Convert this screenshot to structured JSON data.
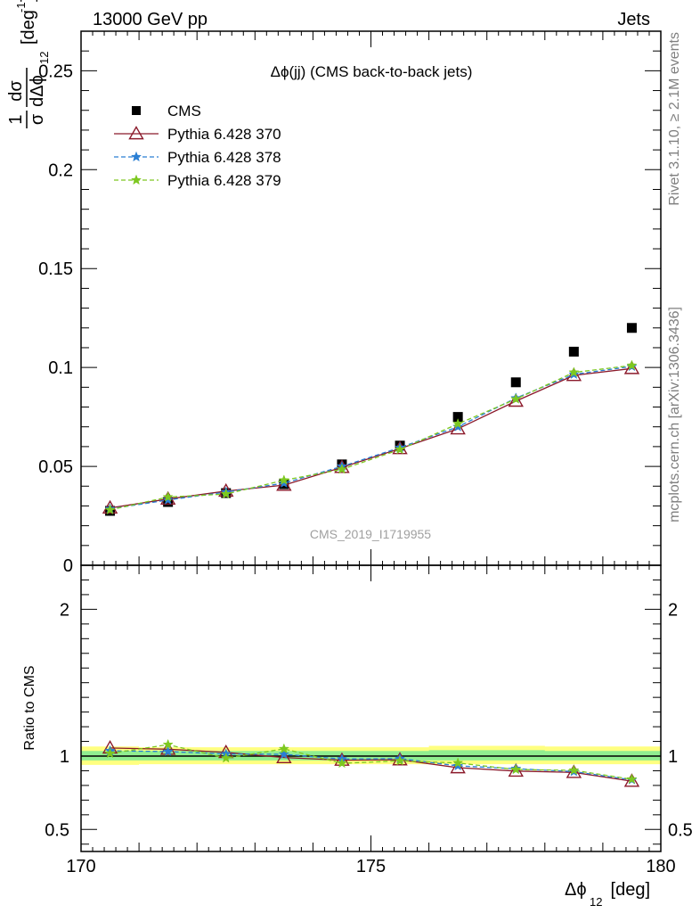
{
  "header": {
    "left": "13000 GeV pp",
    "right": "Jets"
  },
  "side_labels": {
    "rivet": "Rivet 3.1.10, ≥ 2.1M events",
    "mcplots": "mcplots.cern.ch [arXiv:1306.3436]"
  },
  "chart_data": [
    {
      "type": "scatter",
      "title": "Δϕ(jj) (CMS back-to-back jets)",
      "watermark": "CMS_2019_I1719955",
      "ylabel": "1/σ dσ/dΔϕ_12 [deg^-1]",
      "ylabel_parts": {
        "frac_num": "1",
        "frac_den": "σ",
        "d_num": "dσ",
        "d_den": "dΔϕ",
        "sub": "12",
        "unit": "[deg",
        "unit_exp": "-1",
        "unit_close": "]"
      },
      "xlim": [
        170,
        180
      ],
      "ylim": [
        0,
        0.27
      ],
      "yticks": [
        0,
        0.05,
        0.1,
        0.15,
        0.2,
        0.25
      ],
      "ytick_labels": [
        "0",
        "0.05",
        "0.1",
        "0.15",
        "0.2",
        "0.25"
      ],
      "x": [
        170.5,
        171.5,
        172.5,
        173.5,
        174.5,
        175.5,
        176.5,
        177.5,
        178.5,
        179.5
      ],
      "legend_position": "top-left",
      "series": [
        {
          "name": "CMS",
          "color": "#000000",
          "marker": "square",
          "line": "none",
          "values": [
            0.0275,
            0.032,
            0.0365,
            0.041,
            0.051,
            0.0605,
            0.075,
            0.0925,
            0.108,
            0.12
          ]
        },
        {
          "name": "Pythia 6.428 370",
          "color": "#8b1a2b",
          "marker": "triangle",
          "line": "solid",
          "values": [
            0.029,
            0.0335,
            0.0375,
            0.0405,
            0.0495,
            0.059,
            0.069,
            0.083,
            0.096,
            0.0995
          ]
        },
        {
          "name": "Pythia 6.428 378",
          "color": "#2a7fd4",
          "marker": "star",
          "line": "dashed",
          "values": [
            0.0285,
            0.033,
            0.037,
            0.0415,
            0.05,
            0.0595,
            0.07,
            0.0845,
            0.0965,
            0.1005
          ]
        },
        {
          "name": "Pythia 6.428 379",
          "color": "#7dc820",
          "marker": "star",
          "line": "dashed",
          "values": [
            0.028,
            0.0345,
            0.036,
            0.043,
            0.0485,
            0.0585,
            0.0715,
            0.084,
            0.0975,
            0.101
          ]
        }
      ]
    },
    {
      "type": "line",
      "ylabel": "Ratio to CMS",
      "xlabel": "Δϕ_12 [deg]",
      "xlabel_parts": {
        "main": "Δϕ",
        "sub": "12",
        "unit": " [deg]"
      },
      "xlim": [
        170,
        180
      ],
      "ylim": [
        0.35,
        2.3
      ],
      "xticks": [
        170,
        175,
        180
      ],
      "xtick_labels": [
        "170",
        "175",
        "180"
      ],
      "yticks": [
        0.5,
        1,
        2
      ],
      "ytick_labels": [
        "0.5",
        "1",
        "2"
      ],
      "reference": 1,
      "x": [
        170.5,
        171.5,
        172.5,
        173.5,
        174.5,
        175.5,
        176.5,
        177.5,
        178.5,
        179.5
      ],
      "uncertainty_bands": {
        "inner_color": "#90ee90",
        "outer_color": "#ffff80",
        "inner_low": [
          0.97,
          0.97,
          0.97,
          0.97,
          0.97,
          0.97,
          0.97,
          0.97,
          0.97,
          0.97
        ],
        "inner_high": [
          1.035,
          1.035,
          1.035,
          1.035,
          1.035,
          1.035,
          1.04,
          1.04,
          1.035,
          1.035
        ],
        "outer_low": [
          0.94,
          0.945,
          0.945,
          0.945,
          0.945,
          0.945,
          0.945,
          0.945,
          0.945,
          0.945
        ],
        "outer_high": [
          1.065,
          1.06,
          1.06,
          1.06,
          1.06,
          1.06,
          1.07,
          1.07,
          1.065,
          1.065
        ]
      },
      "series": [
        {
          "name": "Pythia 6.428 370",
          "color": "#8b1a2b",
          "marker": "triangle",
          "line": "solid",
          "values": [
            1.055,
            1.047,
            1.025,
            0.99,
            0.972,
            0.975,
            0.921,
            0.898,
            0.889,
            0.829
          ]
        },
        {
          "name": "Pythia 6.428 378",
          "color": "#2a7fd4",
          "marker": "star",
          "line": "dashed",
          "values": [
            1.036,
            1.031,
            1.014,
            1.012,
            0.98,
            0.983,
            0.933,
            0.914,
            0.894,
            0.838
          ]
        },
        {
          "name": "Pythia 6.428 379",
          "color": "#7dc820",
          "marker": "star",
          "line": "dashed",
          "values": [
            1.018,
            1.078,
            0.986,
            1.049,
            0.951,
            0.967,
            0.953,
            0.908,
            0.903,
            0.842
          ]
        }
      ]
    }
  ]
}
